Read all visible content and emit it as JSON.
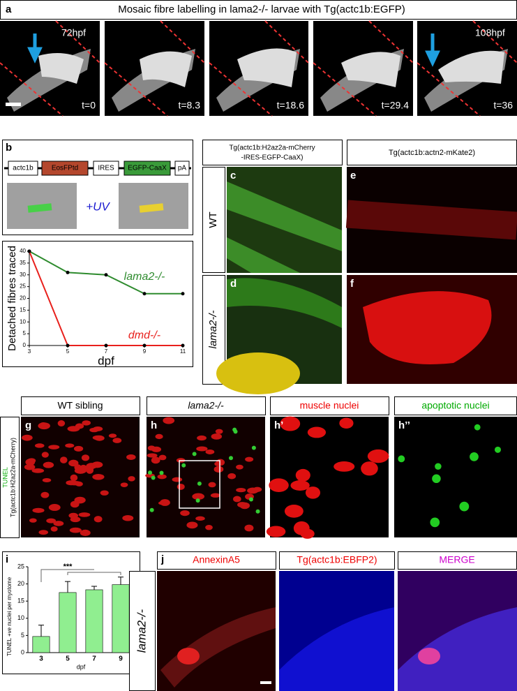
{
  "panels": {
    "a": {
      "label": "a",
      "title": "Mosaic fibre labelling in lama2-/- larvae with Tg(actc1b:EGFP)",
      "stages": [
        "72hpf",
        "108hpf"
      ],
      "times": [
        "t=0",
        "t=8.3",
        "t=18.6",
        "t=29.4",
        "t=36"
      ]
    },
    "b": {
      "label": "b",
      "construct": [
        "actc1b",
        "EosFPtd",
        "IRES",
        "EGFP-CaaX",
        "pA"
      ],
      "treatment": "+UV"
    },
    "cf": {
      "labels": [
        "c",
        "d",
        "e",
        "f"
      ],
      "header_left": [
        "Tg(actc1b:H2az2a-mCherry",
        "-IRES-EGFP-CaaX)"
      ],
      "header_right": "Tg(actc1b:actn2-mKate2)",
      "rows": [
        "WT",
        "lama2-/-"
      ]
    },
    "gh": {
      "labels": [
        "g",
        "h",
        "h’",
        "h’’"
      ],
      "headers": [
        "WT sibling",
        "lama2-/-",
        "muscle nuclei",
        "apoptotic nuclei"
      ],
      "side": [
        "TUNEL",
        "Tg(actc1b:H2az2a-mCherry)"
      ]
    },
    "i": {
      "label": "i"
    },
    "j": {
      "label": "j",
      "headers": [
        "AnnexinA5",
        "Tg(actc1b:EBFP2)",
        "MERGE"
      ],
      "row": "lama2-/-"
    }
  },
  "chart_data": [
    {
      "type": "line",
      "xlabel": "dpf",
      "ylabel": "Detached fibres traced",
      "x": [
        3,
        5,
        7,
        9,
        11
      ],
      "xlim": [
        3,
        11
      ],
      "xticks": [
        3,
        5,
        7,
        9,
        11
      ],
      "ylim": [
        0,
        40
      ],
      "yticks": [
        0,
        5,
        10,
        15,
        20,
        25,
        30,
        35,
        40
      ],
      "series": [
        {
          "name": "lama2-/-",
          "color": "#2e8b2e",
          "values": [
            40,
            31,
            30,
            22,
            22
          ]
        },
        {
          "name": "dmd-/-",
          "color": "#e8201c",
          "values": [
            40,
            0,
            0,
            0,
            0
          ]
        }
      ]
    },
    {
      "type": "bar",
      "xlabel": "dpf",
      "ylabel": "TUNEL +ve nuclei per myotome",
      "categories": [
        "3",
        "5",
        "7",
        "9"
      ],
      "values": [
        4.7,
        17.5,
        18.3,
        19.8
      ],
      "errors": [
        3.3,
        3.2,
        1.0,
        2.2
      ],
      "color": "#90ee90",
      "ylim": [
        0,
        25
      ],
      "yticks": [
        0,
        5,
        10,
        15,
        20,
        25
      ],
      "annotation": "***"
    }
  ]
}
